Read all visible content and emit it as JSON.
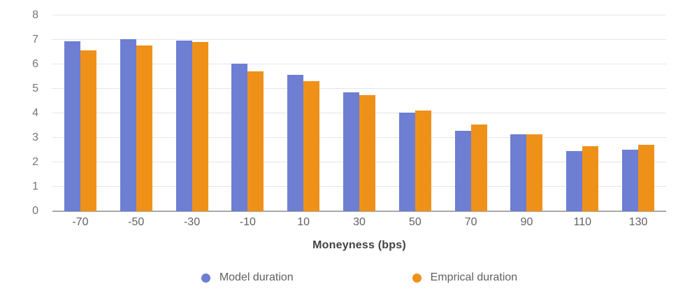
{
  "chart_data": {
    "type": "bar",
    "title": "",
    "xlabel": "Moneyness (bps)",
    "ylabel": "",
    "categories": [
      "-70",
      "-50",
      "-30",
      "-10",
      "10",
      "30",
      "50",
      "70",
      "90",
      "110",
      "130"
    ],
    "series": [
      {
        "name": "Model duration",
        "color": "#6d7ed3",
        "values": [
          6.95,
          7.03,
          6.96,
          6.04,
          5.58,
          4.87,
          4.03,
          3.28,
          3.15,
          2.47,
          2.52
        ]
      },
      {
        "name": "Emprical duration",
        "color": "#ef9118",
        "values": [
          6.58,
          6.77,
          6.91,
          5.72,
          5.32,
          4.74,
          4.11,
          3.53,
          3.15,
          2.66,
          2.72
        ]
      }
    ],
    "ylim": [
      0,
      8
    ],
    "yticks": [
      0,
      1,
      2,
      3,
      4,
      5,
      6,
      7,
      8
    ],
    "grid": true,
    "legend_position": "bottom",
    "colors": {
      "gridline": "#e5e5e5",
      "axis_line": "#a9a9a9",
      "y_tick_text": "#757575",
      "x_tick_text": "#616161",
      "axis_title_text": "#424242",
      "legend_text": "#616161",
      "background": "#ffffff"
    }
  }
}
